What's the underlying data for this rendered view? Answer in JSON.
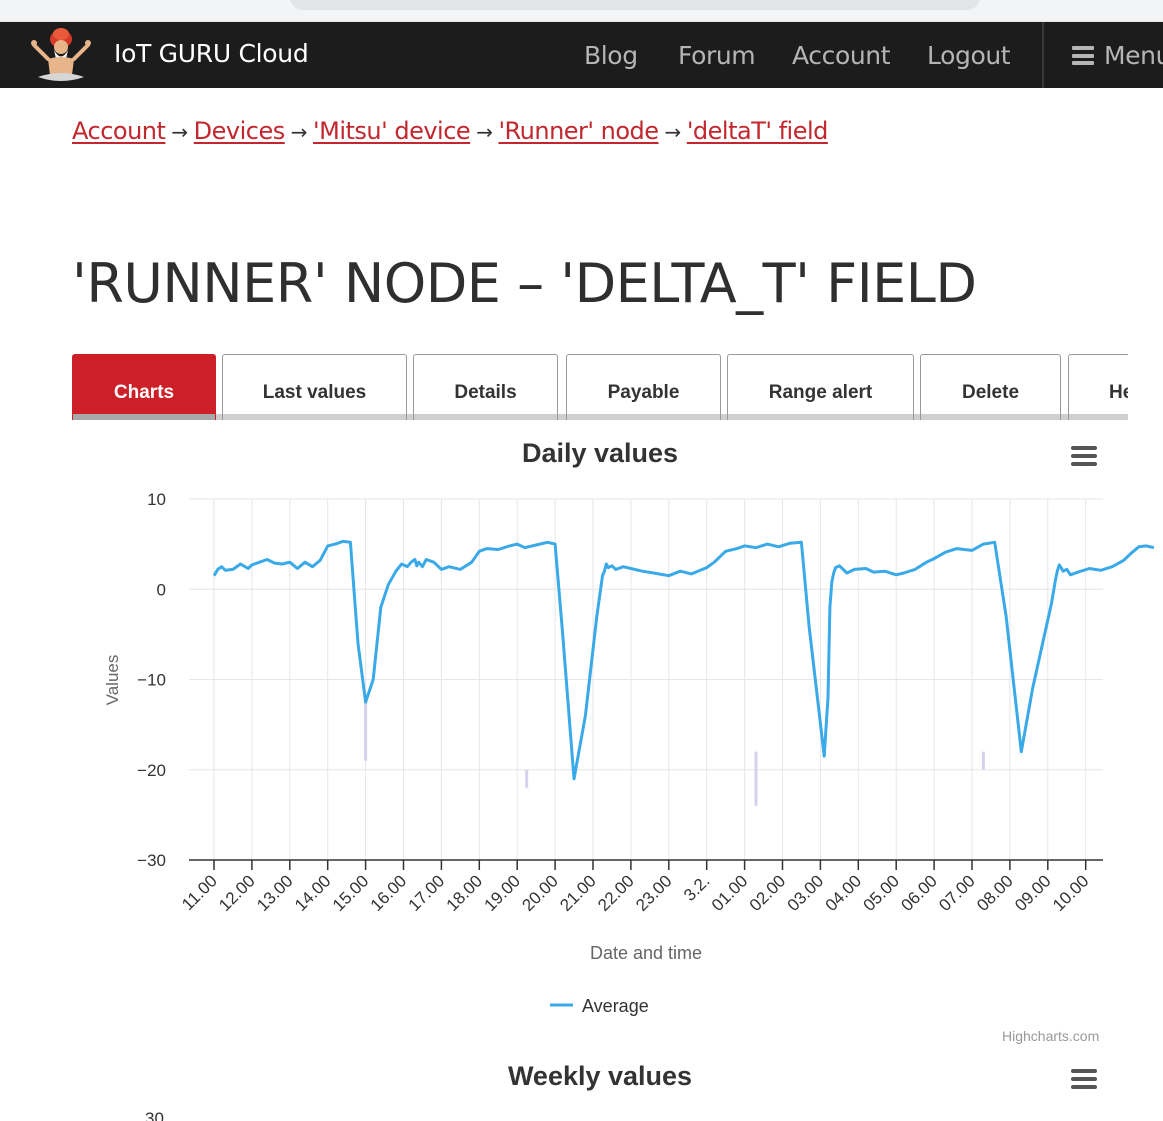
{
  "navbar": {
    "brand": "IoT GURU Cloud",
    "links": [
      "Blog",
      "Forum",
      "Account",
      "Logout"
    ],
    "menu_label": "Menu",
    "logo_icon": "guru-logo-icon"
  },
  "breadcrumb": {
    "items": [
      "Account",
      "Devices",
      "'Mitsu' device",
      "'Runner' node",
      "'deltaT' field"
    ],
    "separator": "→"
  },
  "page_title": "'RUNNER' NODE – 'DELTA_T' FIELD",
  "tabs": [
    {
      "label": "Charts",
      "active": true
    },
    {
      "label": "Last values",
      "active": false
    },
    {
      "label": "Details",
      "active": false
    },
    {
      "label": "Payable",
      "active": false
    },
    {
      "label": "Range alert",
      "active": false
    },
    {
      "label": "Delete",
      "active": false
    },
    {
      "label": "He",
      "active": false
    }
  ],
  "colors": {
    "accent": "#cc1f28",
    "series": "#3aa9e8",
    "range": "#d8d0ee",
    "link": "#c1272d"
  },
  "credits": "Highcharts.com",
  "weekly": {
    "title": "Weekly values",
    "first_tick": "30"
  },
  "chart_data": {
    "type": "line",
    "title": "Daily values",
    "xlabel": "Date and time",
    "ylabel": "Values",
    "ylim": [
      -30,
      10
    ],
    "yticks": [
      10,
      0,
      -10,
      -20,
      -30
    ],
    "xlim": [
      0,
      24.8
    ],
    "xticks": [
      "11.00",
      "12.00",
      "13.00",
      "14.00",
      "15.00",
      "16.00",
      "17.00",
      "18.00",
      "19.00",
      "20.00",
      "21.00",
      "22.00",
      "23.00",
      "3.2.",
      "01.00",
      "02.00",
      "03.00",
      "04.00",
      "05.00",
      "06.00",
      "07.00",
      "08.00",
      "09.00",
      "10.00"
    ],
    "grid": true,
    "legend_position": "bottom-center",
    "series": [
      {
        "name": "Average",
        "x": [
          0,
          0.1,
          0.2,
          0.3,
          0.5,
          0.7,
          0.9,
          1.0,
          1.2,
          1.4,
          1.6,
          1.8,
          2.0,
          2.2,
          2.4,
          2.6,
          2.8,
          3.0,
          3.2,
          3.4,
          3.6,
          3.8,
          4.0,
          4.2,
          4.4,
          4.6,
          4.8,
          4.95,
          5.1,
          5.2,
          5.3,
          5.35,
          5.4,
          5.5,
          5.6,
          5.8,
          6.0,
          6.2,
          6.5,
          6.8,
          7.0,
          7.2,
          7.5,
          7.8,
          8.0,
          8.2,
          8.5,
          8.8,
          9.0,
          9.2,
          9.5,
          9.8,
          10.1,
          10.2,
          10.25,
          10.3,
          10.35,
          10.4,
          10.5,
          10.6,
          10.8,
          11.0,
          11.3,
          11.6,
          12.0,
          12.3,
          12.6,
          13.0,
          13.2,
          13.5,
          13.8,
          14.0,
          14.3,
          14.6,
          14.9,
          15.2,
          15.5,
          15.7,
          16.1,
          16.2,
          16.25,
          16.3,
          16.35,
          16.4,
          16.5,
          16.7,
          16.9,
          17.2,
          17.4,
          17.7,
          18.0,
          18.2,
          18.5,
          18.8,
          19.0,
          19.3,
          19.6,
          20.0,
          20.3,
          20.6,
          20.9,
          21.3,
          21.6,
          22.1,
          22.2,
          22.25,
          22.3,
          22.35,
          22.4,
          22.5,
          22.6,
          22.8,
          23.1,
          23.4,
          23.7,
          24.0,
          24.2,
          24.4,
          24.6,
          24.8
        ],
        "values": [
          1.5,
          2.2,
          2.5,
          2.1,
          2.2,
          2.8,
          2.3,
          2.7,
          3.0,
          3.3,
          2.9,
          2.8,
          3.0,
          2.3,
          3.0,
          2.5,
          3.2,
          4.8,
          5.0,
          5.3,
          5.2,
          -6.0,
          -12.5,
          -10.0,
          -2.0,
          0.5,
          2.0,
          2.8,
          2.5,
          3.0,
          3.3,
          2.6,
          3.0,
          2.5,
          3.3,
          3.0,
          2.2,
          2.5,
          2.2,
          3.0,
          4.2,
          4.5,
          4.4,
          4.8,
          5.0,
          4.6,
          4.9,
          5.2,
          5.0,
          -5.0,
          -21.0,
          -14.0,
          -3.0,
          0.0,
          1.5,
          2.0,
          2.8,
          2.4,
          2.6,
          2.2,
          2.5,
          2.3,
          2.0,
          1.8,
          1.5,
          2.0,
          1.7,
          2.4,
          3.0,
          4.2,
          4.5,
          4.8,
          4.6,
          5.0,
          4.7,
          5.1,
          5.2,
          -4.0,
          -18.5,
          -12.0,
          -2.0,
          0.8,
          1.8,
          2.4,
          2.6,
          1.8,
          2.2,
          2.3,
          1.9,
          2.0,
          1.6,
          1.8,
          2.2,
          3.0,
          3.4,
          4.1,
          4.5,
          4.3,
          5.0,
          5.2,
          -3.0,
          -18.0,
          -11.0,
          -1.5,
          1.0,
          2.0,
          2.7,
          2.4,
          2.0,
          2.2,
          1.6,
          1.9,
          2.3,
          2.1,
          2.5,
          3.2,
          4.0,
          4.7,
          4.8,
          4.6
        ]
      }
    ],
    "range_dips": [
      {
        "x": 4.0,
        "low": -19.0,
        "high": -12.0
      },
      {
        "x": 8.25,
        "low": -22.0,
        "high": -20.0
      },
      {
        "x": 14.3,
        "low": -24.0,
        "high": -18.0
      },
      {
        "x": 20.3,
        "low": -20.0,
        "high": -18.0
      }
    ]
  }
}
